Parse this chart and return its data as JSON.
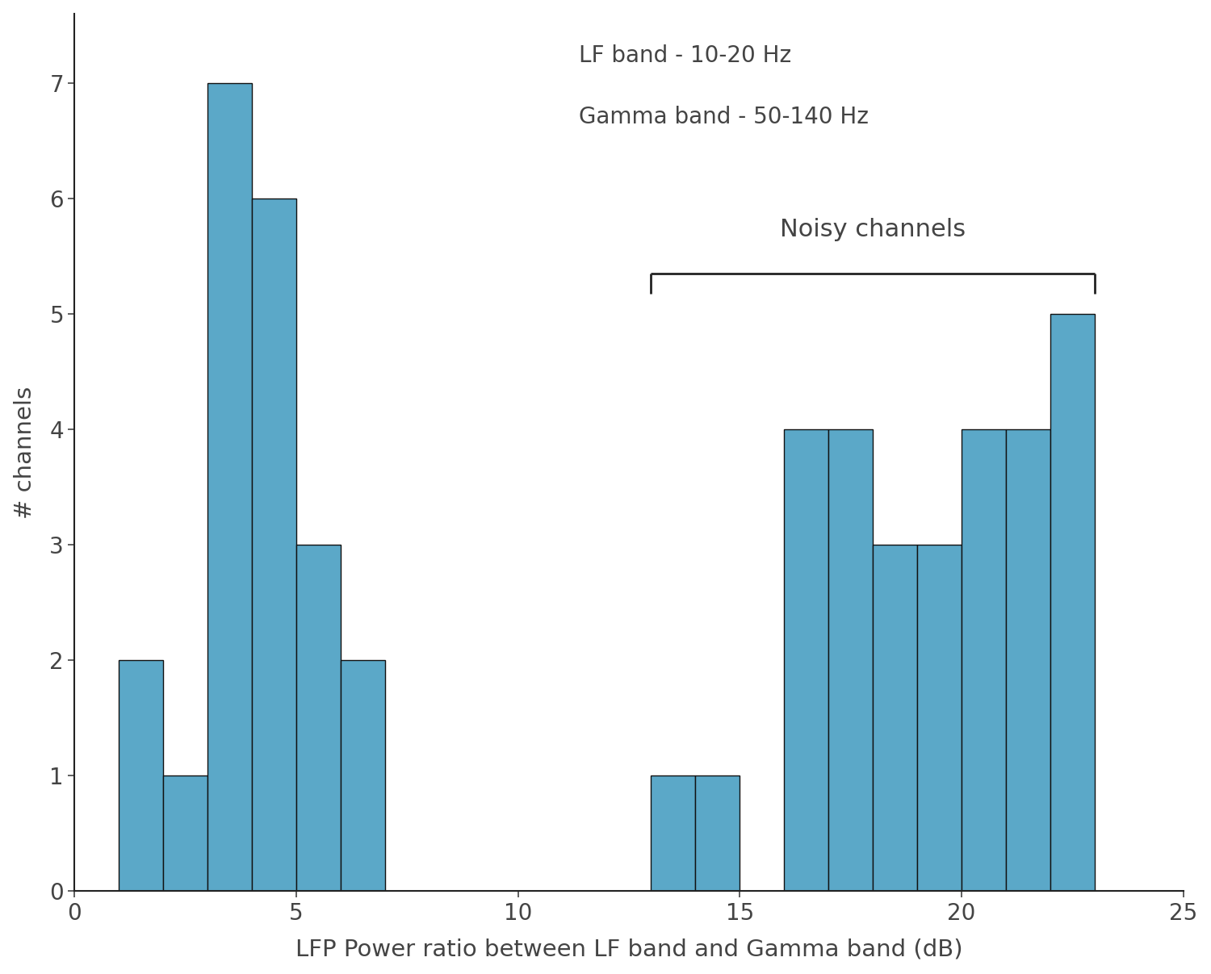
{
  "bar_left_edges": [
    1,
    2,
    3,
    4,
    5,
    6,
    13,
    14,
    16,
    17,
    18,
    19,
    20,
    21,
    22
  ],
  "bar_heights": [
    2,
    1,
    7,
    6,
    3,
    2,
    1,
    1,
    4,
    4,
    3,
    3,
    4,
    4,
    5
  ],
  "bar_color": "#5ba8c8",
  "bar_edgecolor": "#111111",
  "bar_linewidth": 1.0,
  "xlabel": "LFP Power ratio between LF band and Gamma band (dB)",
  "ylabel": "# channels",
  "xlim": [
    0,
    25
  ],
  "ylim": [
    0,
    7.6
  ],
  "xticks": [
    0,
    5,
    10,
    15,
    20,
    25
  ],
  "yticks": [
    0,
    1,
    2,
    3,
    4,
    5,
    6,
    7
  ],
  "annotation_text1": "LF band - 10-20 Hz",
  "annotation_text2": "Gamma band - 50-140 Hz",
  "noisy_label": "Noisy channels",
  "noisy_bracket_x1": 13.0,
  "noisy_bracket_x2": 23.0,
  "noisy_bracket_y_data": 5.35,
  "noisy_bracket_drop": 0.18,
  "bar_width": 1.0,
  "background_color": "#ffffff",
  "text_color": "#444444",
  "xlabel_fontsize": 21,
  "ylabel_fontsize": 21,
  "tick_fontsize": 20,
  "annotation_fontsize": 20,
  "noisy_fontsize": 22,
  "spine_color": "#222222"
}
